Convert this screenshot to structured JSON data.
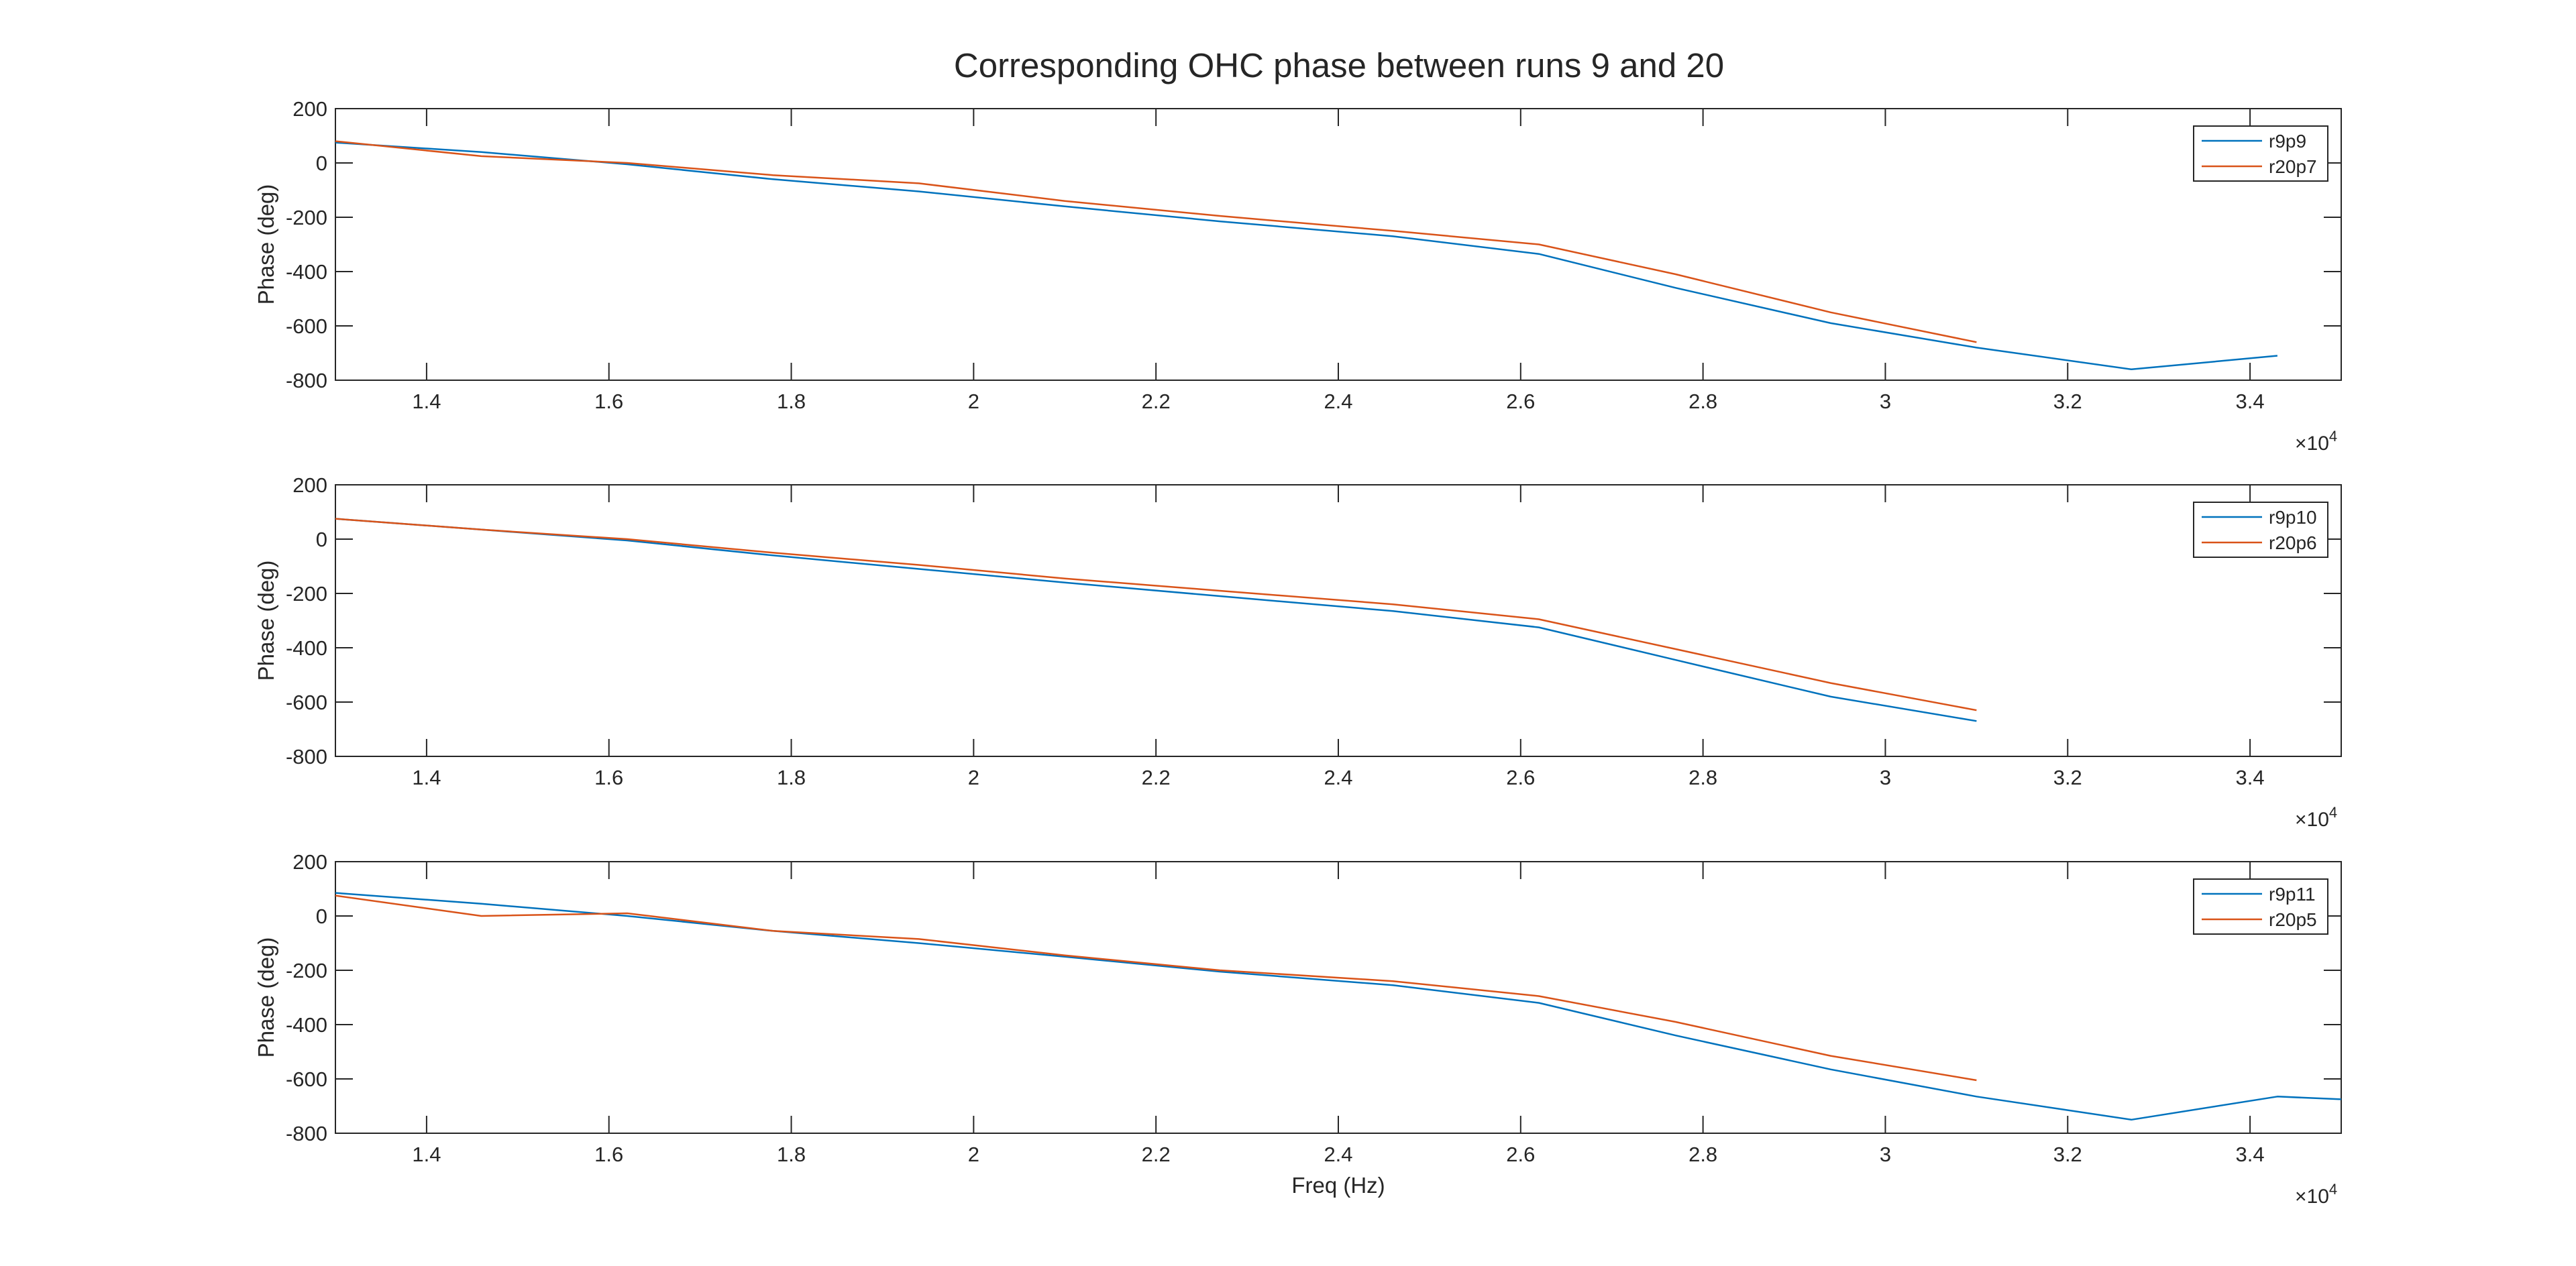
{
  "figure": {
    "title": "Corresponding OHC phase between runs 9 and 20"
  },
  "chart_data": [
    {
      "type": "line",
      "title": "Corresponding OHC phase between runs 9 and 20",
      "xlabel": "",
      "ylabel": "Phase (deg)",
      "xlim": [
        13000,
        35000
      ],
      "ylim": [
        -800,
        200
      ],
      "x_exponent_label": "×10",
      "x_exponent_power": "4",
      "xticks": [
        14000,
        16000,
        18000,
        20000,
        22000,
        24000,
        26000,
        28000,
        30000,
        32000,
        34000
      ],
      "xtick_labels": [
        "1.4",
        "1.6",
        "1.8",
        "2",
        "2.2",
        "2.4",
        "2.6",
        "2.8",
        "3",
        "3.2",
        "3.4"
      ],
      "yticks": [
        200,
        0,
        -200,
        -400,
        -600,
        -800
      ],
      "ytick_labels": [
        "200",
        "0",
        "-200",
        "-400",
        "-600",
        "-800"
      ],
      "grid": false,
      "legend_position": "top-right",
      "series": [
        {
          "name": "r9p9",
          "color": "#0072BD",
          "x": [
            13000,
            14600,
            16200,
            17800,
            19400,
            21000,
            22700,
            24600,
            26200,
            27700,
            29400,
            31000,
            32700,
            34300
          ],
          "y": [
            75,
            40,
            -5,
            -60,
            -105,
            -160,
            -215,
            -270,
            -335,
            -460,
            -590,
            -680,
            -760,
            -710
          ]
        },
        {
          "name": "r20p7",
          "color": "#D95319",
          "x": [
            13000,
            14600,
            16200,
            17800,
            19400,
            21000,
            22700,
            24600,
            26200,
            27700,
            29400,
            31000
          ],
          "y": [
            80,
            25,
            0,
            -45,
            -75,
            -140,
            -195,
            -250,
            -300,
            -410,
            -550,
            -660
          ]
        }
      ]
    },
    {
      "type": "line",
      "xlabel": "",
      "ylabel": "Phase (deg)",
      "xlim": [
        13000,
        35000
      ],
      "ylim": [
        -800,
        200
      ],
      "x_exponent_label": "×10",
      "x_exponent_power": "4",
      "xticks": [
        14000,
        16000,
        18000,
        20000,
        22000,
        24000,
        26000,
        28000,
        30000,
        32000,
        34000
      ],
      "xtick_labels": [
        "1.4",
        "1.6",
        "1.8",
        "2",
        "2.2",
        "2.4",
        "2.6",
        "2.8",
        "3",
        "3.2",
        "3.4"
      ],
      "yticks": [
        200,
        0,
        -200,
        -400,
        -600,
        -800
      ],
      "ytick_labels": [
        "200",
        "0",
        "-200",
        "-400",
        "-600",
        "-800"
      ],
      "grid": false,
      "legend_position": "top-right",
      "series": [
        {
          "name": "r9p10",
          "color": "#0072BD",
          "x": [
            13000,
            14600,
            16200,
            17800,
            19400,
            21000,
            22700,
            24600,
            26200,
            27700,
            29400,
            31000
          ],
          "y": [
            75,
            35,
            -5,
            -60,
            -110,
            -160,
            -210,
            -265,
            -325,
            -445,
            -580,
            -670
          ]
        },
        {
          "name": "r20p6",
          "color": "#D95319",
          "x": [
            13000,
            14600,
            16200,
            17800,
            19400,
            21000,
            22700,
            24600,
            26200,
            27700,
            29400,
            31000
          ],
          "y": [
            75,
            35,
            0,
            -50,
            -95,
            -145,
            -190,
            -240,
            -295,
            -405,
            -530,
            -630
          ]
        }
      ]
    },
    {
      "type": "line",
      "xlabel": "Freq (Hz)",
      "ylabel": "Phase (deg)",
      "xlim": [
        13000,
        35000
      ],
      "ylim": [
        -800,
        200
      ],
      "x_exponent_label": "×10",
      "x_exponent_power": "4",
      "xticks": [
        14000,
        16000,
        18000,
        20000,
        22000,
        24000,
        26000,
        28000,
        30000,
        32000,
        34000
      ],
      "xtick_labels": [
        "1.4",
        "1.6",
        "1.8",
        "2",
        "2.2",
        "2.4",
        "2.6",
        "2.8",
        "3",
        "3.2",
        "3.4"
      ],
      "yticks": [
        200,
        0,
        -200,
        -400,
        -600,
        -800
      ],
      "ytick_labels": [
        "200",
        "0",
        "-200",
        "-400",
        "-600",
        "-800"
      ],
      "grid": false,
      "legend_position": "top-right",
      "series": [
        {
          "name": "r9p11",
          "color": "#0072BD",
          "x": [
            13000,
            14600,
            16200,
            17800,
            19400,
            21000,
            22700,
            24600,
            26200,
            27700,
            29400,
            31000,
            32700,
            34300,
            35000
          ],
          "y": [
            85,
            45,
            0,
            -55,
            -100,
            -150,
            -205,
            -255,
            -320,
            -440,
            -565,
            -665,
            -750,
            -665,
            -675
          ]
        },
        {
          "name": "r20p5",
          "color": "#D95319",
          "x": [
            13000,
            14600,
            16200,
            17800,
            19400,
            21000,
            22700,
            24600,
            26200,
            27700,
            29400,
            31000
          ],
          "y": [
            75,
            0,
            10,
            -55,
            -85,
            -145,
            -200,
            -240,
            -295,
            -390,
            -515,
            -605
          ]
        }
      ]
    }
  ]
}
